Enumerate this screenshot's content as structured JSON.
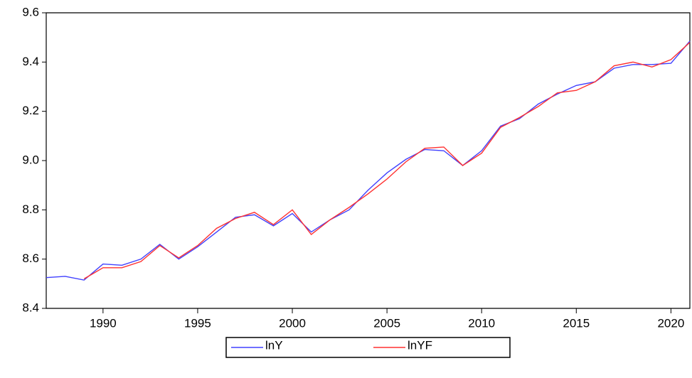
{
  "chart_data": {
    "type": "line",
    "x": [
      1987,
      1988,
      1989,
      1990,
      1991,
      1992,
      1993,
      1994,
      1995,
      1996,
      1997,
      1998,
      1999,
      2000,
      2001,
      2002,
      2003,
      2004,
      2005,
      2006,
      2007,
      2008,
      2009,
      2010,
      2011,
      2012,
      2013,
      2014,
      2015,
      2016,
      2017,
      2018,
      2019,
      2020,
      2021
    ],
    "series": [
      {
        "name": "lnY",
        "color": "#4040ff",
        "values": [
          8.525,
          8.53,
          8.515,
          8.58,
          8.575,
          8.6,
          8.66,
          8.6,
          8.65,
          8.71,
          8.77,
          8.78,
          8.735,
          8.785,
          8.71,
          8.76,
          8.8,
          8.88,
          8.95,
          9.005,
          9.045,
          9.04,
          8.98,
          9.04,
          9.14,
          9.17,
          9.23,
          9.27,
          9.305,
          9.32,
          9.375,
          9.39,
          9.39,
          9.395,
          9.485
        ]
      },
      {
        "name": "lnYF",
        "color": "#ff3030",
        "values": [
          null,
          null,
          8.52,
          8.565,
          8.565,
          8.59,
          8.655,
          8.605,
          8.655,
          8.725,
          8.765,
          8.79,
          8.74,
          8.8,
          8.7,
          8.76,
          8.81,
          8.865,
          8.925,
          8.995,
          9.05,
          9.055,
          8.98,
          9.03,
          9.135,
          9.175,
          9.22,
          9.275,
          9.285,
          9.32,
          9.385,
          9.4,
          9.38,
          9.41,
          9.48
        ]
      }
    ],
    "xlim": [
      1987,
      2021
    ],
    "xticks": [
      1990,
      1995,
      2000,
      2005,
      2010,
      2015,
      2020
    ],
    "ylim": [
      8.4,
      9.6
    ],
    "yticks": [
      8.4,
      8.6,
      8.8,
      {
        "value": 9,
        "label": "9.0"
      },
      9.2,
      9.4,
      9.6
    ],
    "grid": false
  }
}
